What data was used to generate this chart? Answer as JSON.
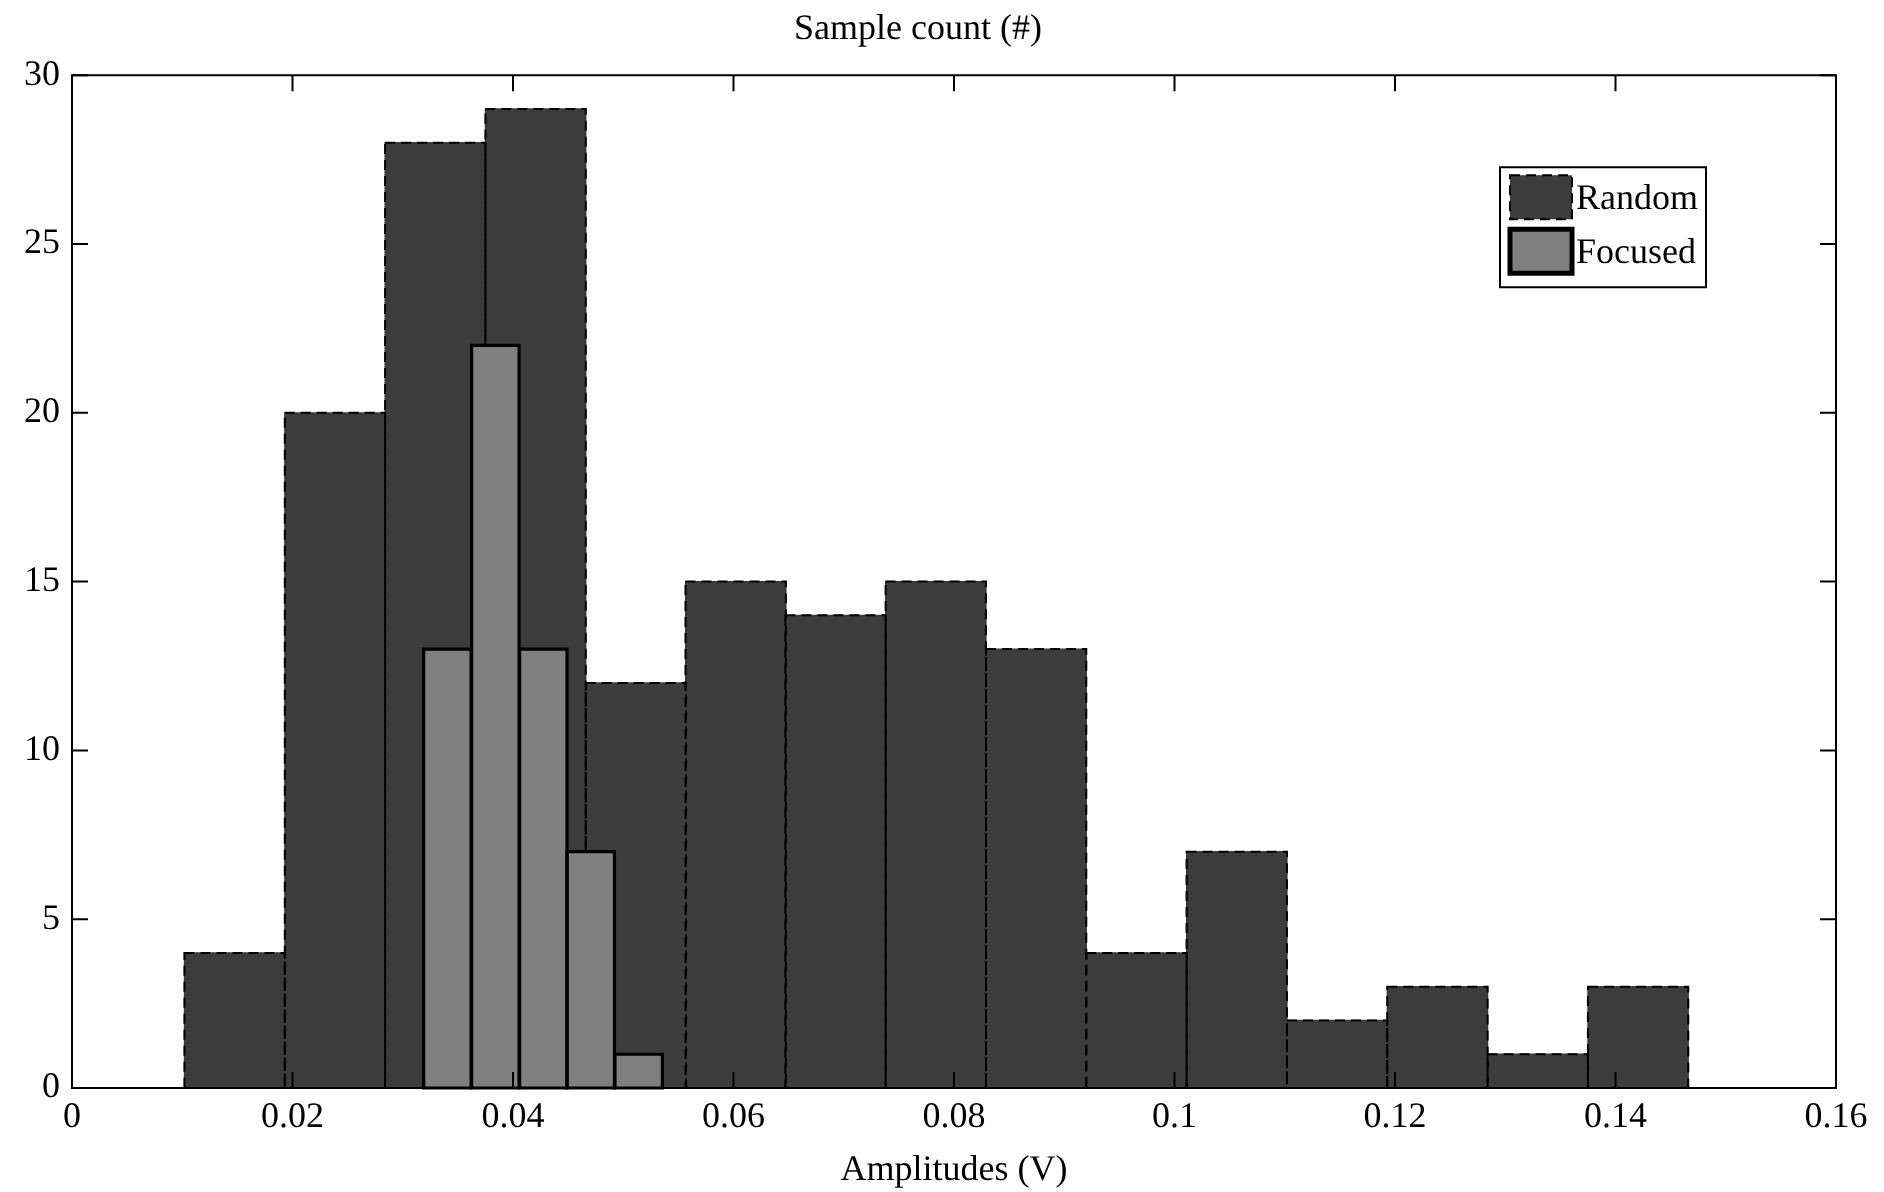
{
  "chart_data": {
    "type": "histogram",
    "title": "Sample count (#)",
    "xlabel": "Amplitudes (V)",
    "bins": [
      0.0102,
      0.0193,
      0.0284,
      0.0375,
      0.0466,
      0.0557,
      0.0647,
      0.0738,
      0.0829,
      0.092,
      0.1011,
      0.1102,
      0.1193,
      0.1284,
      0.1375,
      0.1466
    ],
    "series": [
      {
        "name": "Random",
        "color": "#3c3c3c",
        "line_style": "dashed",
        "values": [
          4,
          20,
          28,
          29,
          12,
          15,
          14,
          15,
          13,
          4,
          7,
          2,
          3,
          1,
          3
        ]
      },
      {
        "name": "Focused",
        "color": "#808080",
        "line_style": "solid",
        "bins": [
          0.0319,
          0.0362,
          0.0406,
          0.0449,
          0.0492,
          0.0536
        ],
        "values": [
          13,
          22,
          13,
          7,
          1
        ]
      }
    ],
    "xlim": [
      0,
      0.16
    ],
    "xticks": [
      0,
      0.02,
      0.04,
      0.06,
      0.08,
      0.1,
      0.12,
      0.14,
      0.16
    ],
    "ylim": [
      0,
      30
    ],
    "yticks": [
      0,
      5,
      10,
      15,
      20,
      25,
      30
    ],
    "grid": false,
    "legend": "top right"
  }
}
